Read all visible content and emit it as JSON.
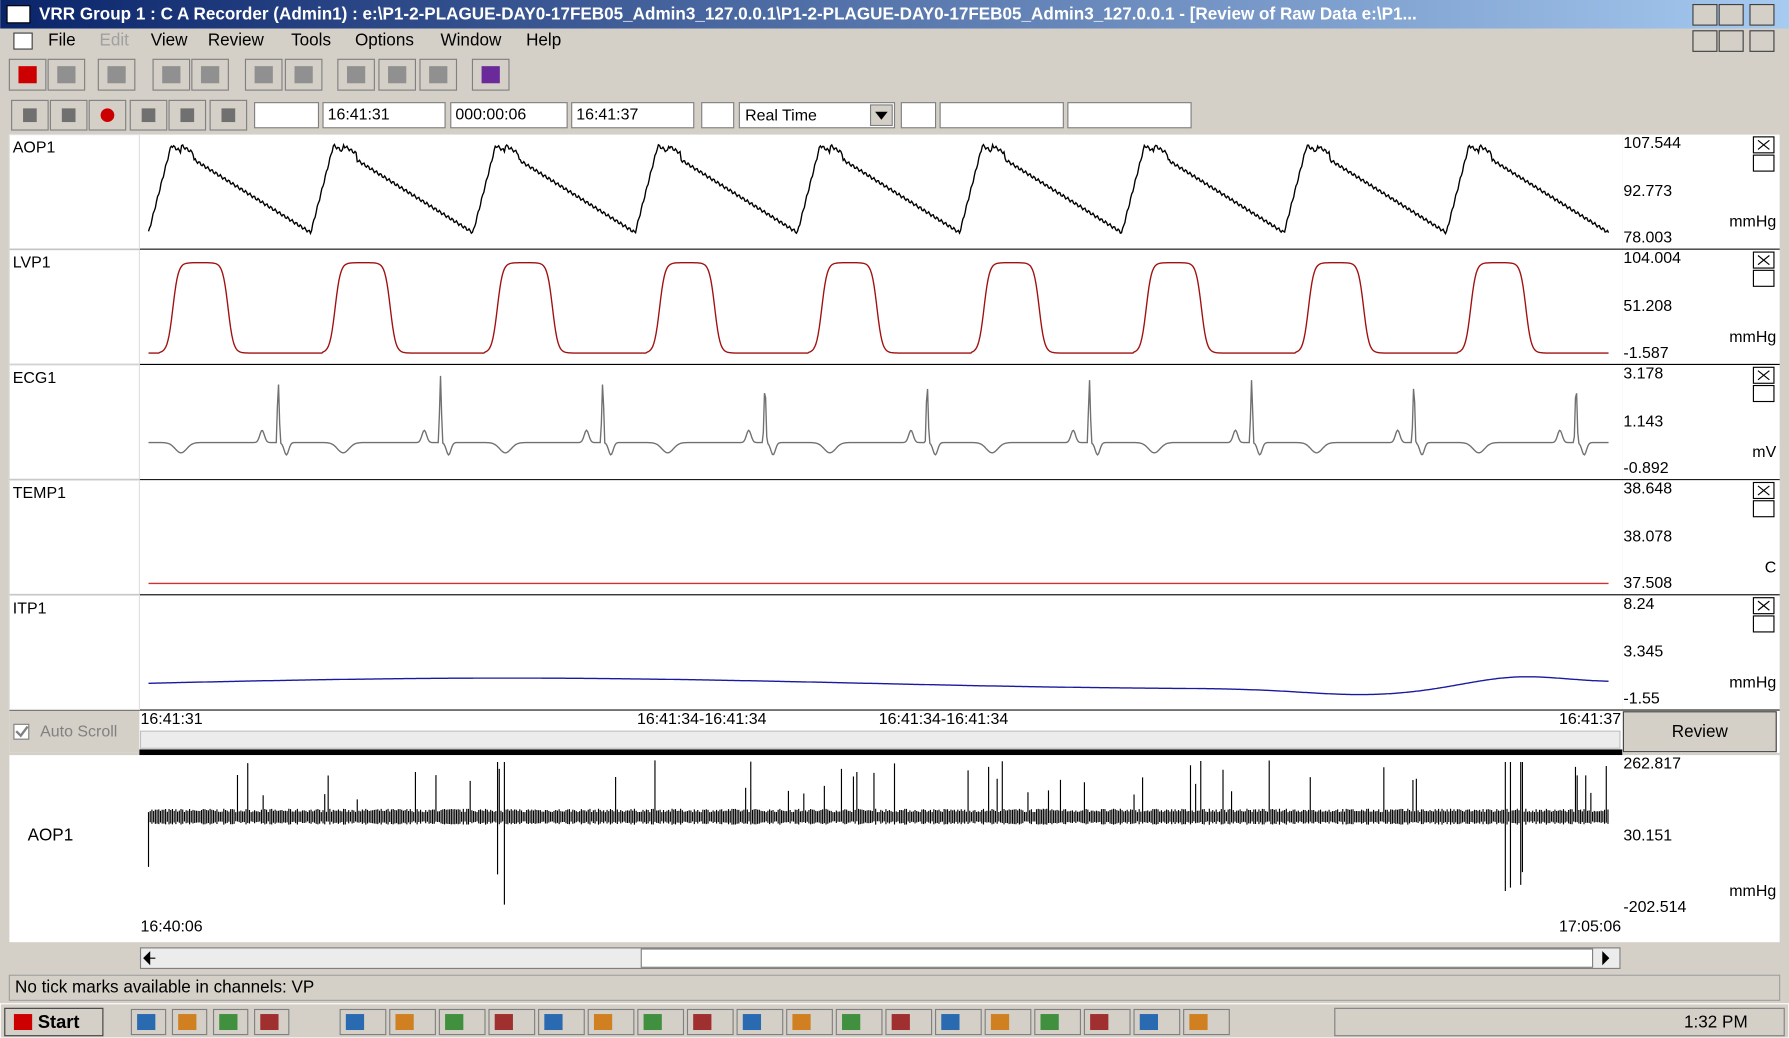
{
  "window": {
    "title": "VRR Group 1 : C A Recorder (Admin1) : e:\\P1-2-PLAGUE-DAY0-17FEB05_Admin3_127.0.0.1\\P1-2-PLAGUE-DAY0-17FEB05_Admin3_127.0.0.1 - [Review of Raw Data e:\\P1..."
  },
  "menu": [
    "File",
    "Edit",
    "View",
    "Review",
    "Tools",
    "Options",
    "Window",
    "Help"
  ],
  "toolbar": {
    "start_time": "16:41:31",
    "duration": "000:00:06",
    "end_time": "16:41:37",
    "mode": "Real Time"
  },
  "channels": [
    {
      "name": "AOP1",
      "max": "107.544",
      "mid": "92.773",
      "min": "78.003",
      "unit": "mmHg"
    },
    {
      "name": "LVP1",
      "max": "104.004",
      "mid": "51.208",
      "min": "-1.587",
      "unit": "mmHg"
    },
    {
      "name": "ECG1",
      "max": "3.178",
      "mid": "1.143",
      "min": "-0.892",
      "unit": "mV"
    },
    {
      "name": "TEMP1",
      "max": "38.648",
      "mid": "38.078",
      "min": "37.508",
      "unit": "C"
    },
    {
      "name": "ITP1",
      "max": "8.24",
      "mid": "3.345",
      "min": "-1.55",
      "unit": "mmHg"
    }
  ],
  "scroll": {
    "labels": [
      "16:41:31",
      "16:41:34-16:41:34",
      "16:41:34-16:41:34",
      "16:41:37"
    ],
    "auto_scroll": "Auto Scroll",
    "button": "Review"
  },
  "overview": {
    "name": "AOP1",
    "max": "262.817",
    "mid": "30.151",
    "min": "-202.514",
    "unit": "mmHg",
    "start": "16:40:06",
    "end": "17:05:06"
  },
  "status": "No tick marks available in channels: VP",
  "taskbar": {
    "start": "Start",
    "clock": "1:32 PM"
  }
}
